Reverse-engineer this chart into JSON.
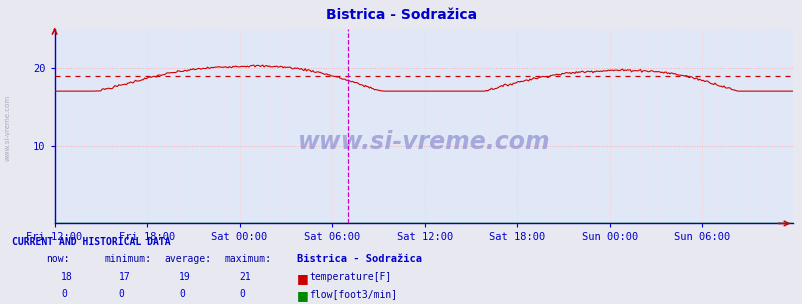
{
  "title": "Bistrica - Sodražica",
  "title_color": "#0000cc",
  "bg_color": "#e8e8f0",
  "plot_bg_color": "#e0e8f8",
  "grid_color_h": "#ffaaaa",
  "grid_color_v": "#ffcccc",
  "axis_color": "#0000cc",
  "tick_label_color": "#0000cc",
  "ylabel_range": [
    0,
    25
  ],
  "yticks": [
    10,
    20
  ],
  "x_tick_labels": [
    "Fri 12:00",
    "Fri 18:00",
    "Sat 00:00",
    "Sat 06:00",
    "Sat 12:00",
    "Sat 18:00",
    "Sun 00:00",
    "Sun 06:00"
  ],
  "num_points": 576,
  "temp_color": "#cc0000",
  "flow_color": "#008800",
  "average_line_color": "#cc0000",
  "average_value": 19.0,
  "watermark_color": "#8888cc",
  "vertical_line_color": "#cc00cc",
  "now_temp": 18,
  "min_temp": 17,
  "avg_temp": 19,
  "max_temp": 21,
  "now_flow": 0,
  "min_flow": 0,
  "avg_flow": 0,
  "max_flow": 0,
  "table_header_color": "#0000cc",
  "table_data_color": "#0000cc",
  "table_label_color": "#0000aa"
}
